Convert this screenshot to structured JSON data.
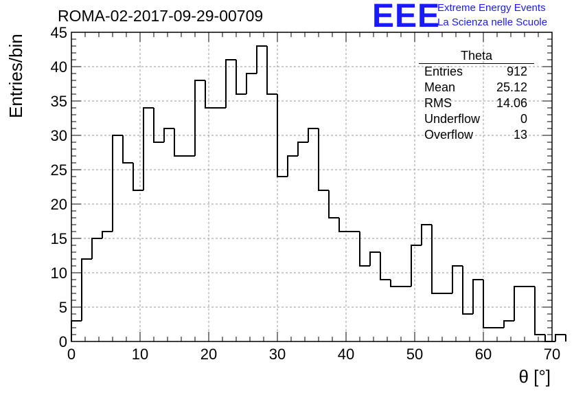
{
  "header": {
    "title": "ROMA-02-2017-09-29-00709",
    "logo": "EEE",
    "logo_line1": "Extreme Energy Events",
    "logo_line2": "La Scienza nelle Scuole"
  },
  "stats": {
    "title": "Theta",
    "rows": [
      {
        "label": "Entries",
        "value": "912"
      },
      {
        "label": "Mean",
        "value": "25.12"
      },
      {
        "label": "RMS",
        "value": "14.06"
      },
      {
        "label": "Underflow",
        "value": "0"
      },
      {
        "label": "Overflow",
        "value": "13"
      }
    ]
  },
  "chart_data": {
    "type": "bar",
    "histogram": true,
    "bin_width": 1.5,
    "x_start": 0,
    "values": [
      3,
      12,
      15,
      16,
      30,
      26,
      22,
      34,
      29,
      31,
      27,
      27,
      38,
      34,
      34,
      41,
      36,
      39,
      43,
      36,
      24,
      27,
      29,
      31,
      22,
      18,
      16,
      16,
      11,
      13,
      9,
      8,
      8,
      14,
      17,
      7,
      7,
      11,
      4,
      9,
      2,
      2,
      3,
      8,
      8,
      1,
      0,
      1
    ],
    "xlabel": "θ [°]",
    "ylabel": "Entries/bin",
    "xlim": [
      0,
      70
    ],
    "ylim": [
      0,
      45
    ],
    "xticks": [
      "0",
      "10",
      "20",
      "30",
      "40",
      "50",
      "60",
      "70"
    ],
    "yticks": [
      "0",
      "5",
      "10",
      "15",
      "20",
      "25",
      "30",
      "35",
      "40",
      "45"
    ],
    "grid": true,
    "line_color": "#000000"
  }
}
